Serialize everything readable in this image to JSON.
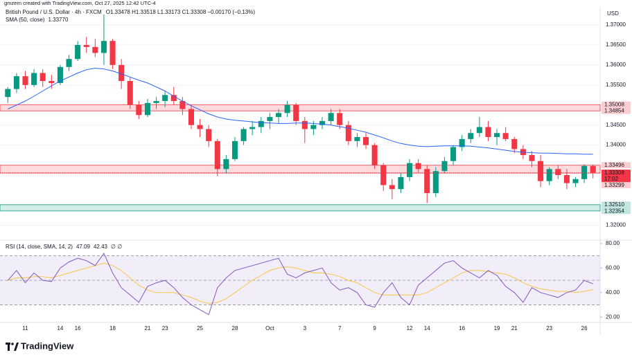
{
  "stamp": "gmzern created with TradingView.com, Oct 27, 2025 12:42 UTC-4",
  "footer": {
    "brand": "TradingView"
  },
  "chart_data": [
    {
      "type": "candlestick",
      "title": "British Pound / U.S. Dollar · 4h · FXCM",
      "ohlc_legend": "O1.33478 H1.33518 L1.33173 C1.33308 −0.00170 (−0.13%)",
      "currency": "USD",
      "categories": [
        null,
        null,
        "11",
        null,
        null,
        null,
        "14",
        null,
        "16",
        null,
        null,
        null,
        "18",
        null,
        null,
        null,
        "21",
        null,
        "23",
        null,
        null,
        null,
        "25",
        null,
        null,
        null,
        "28",
        null,
        null,
        null,
        "Oct",
        null,
        null,
        null,
        "3",
        null,
        null,
        null,
        "7",
        null,
        null,
        null,
        "9",
        null,
        null,
        null,
        "12",
        null,
        "14",
        null,
        null,
        null,
        "16",
        null,
        null,
        null,
        "19",
        null,
        "21",
        null,
        null,
        null,
        "23",
        null,
        null,
        null,
        "26",
        null
      ],
      "open": [
        1.352,
        1.354,
        1.3572,
        1.355,
        1.358,
        1.356,
        1.3555,
        1.3595,
        1.3615,
        1.365,
        1.3645,
        1.363,
        1.366,
        1.36,
        1.356,
        1.35,
        1.3475,
        1.3505,
        1.351,
        1.3525,
        1.351,
        1.349,
        1.345,
        1.344,
        1.341,
        1.334,
        1.3365,
        1.341,
        1.344,
        1.3445,
        1.346,
        1.347,
        1.348,
        1.35,
        1.346,
        1.344,
        1.345,
        1.346,
        1.348,
        1.345,
        1.341,
        1.342,
        1.34,
        1.335,
        1.33,
        1.329,
        1.332,
        1.3355,
        1.334,
        1.328,
        1.3335,
        1.336,
        1.3395,
        1.3415,
        1.343,
        1.3445,
        1.342,
        1.343,
        1.3415,
        1.339,
        1.3375,
        1.336,
        1.331,
        1.334,
        1.3325,
        1.3305,
        1.3315,
        1.33478
      ],
      "high": [
        1.3545,
        1.358,
        1.3585,
        1.359,
        1.359,
        1.3575,
        1.36,
        1.3625,
        1.366,
        1.367,
        1.3665,
        1.3726,
        1.3665,
        1.3615,
        1.357,
        1.351,
        1.3515,
        1.352,
        1.3535,
        1.3545,
        1.352,
        1.35,
        1.3465,
        1.345,
        1.3415,
        1.3375,
        1.342,
        1.3445,
        1.346,
        1.347,
        1.348,
        1.349,
        1.351,
        1.3505,
        1.347,
        1.346,
        1.347,
        1.349,
        1.349,
        1.346,
        1.343,
        1.343,
        1.3405,
        1.3355,
        1.3315,
        1.333,
        1.3365,
        1.3365,
        1.335,
        1.3345,
        1.337,
        1.34,
        1.3425,
        1.344,
        1.347,
        1.346,
        1.344,
        1.3445,
        1.342,
        1.34,
        1.3385,
        1.3375,
        1.3345,
        1.335,
        1.334,
        1.332,
        1.3352,
        1.33518
      ],
      "low": [
        1.3505,
        1.353,
        1.354,
        1.3545,
        1.3545,
        1.354,
        1.355,
        1.3585,
        1.361,
        1.363,
        1.362,
        1.36,
        1.359,
        1.354,
        1.349,
        1.3465,
        1.347,
        1.349,
        1.3495,
        1.35,
        1.3475,
        1.344,
        1.342,
        1.3395,
        1.3322,
        1.333,
        1.336,
        1.34,
        1.3425,
        1.343,
        1.344,
        1.3455,
        1.347,
        1.345,
        1.3405,
        1.3425,
        1.344,
        1.345,
        1.344,
        1.34,
        1.3395,
        1.339,
        1.334,
        1.3285,
        1.3265,
        1.328,
        1.331,
        1.333,
        1.3255,
        1.327,
        1.333,
        1.335,
        1.3385,
        1.3405,
        1.342,
        1.341,
        1.34,
        1.341,
        1.338,
        1.3365,
        1.3345,
        1.3295,
        1.33,
        1.3315,
        1.329,
        1.3295,
        1.3305,
        1.33173
      ],
      "close": [
        1.354,
        1.3572,
        1.355,
        1.358,
        1.356,
        1.3555,
        1.3595,
        1.3615,
        1.365,
        1.3645,
        1.363,
        1.366,
        1.36,
        1.356,
        1.35,
        1.3475,
        1.3505,
        1.351,
        1.3525,
        1.351,
        1.349,
        1.345,
        1.344,
        1.341,
        1.334,
        1.3365,
        1.341,
        1.344,
        1.3445,
        1.346,
        1.347,
        1.348,
        1.35,
        1.346,
        1.344,
        1.345,
        1.346,
        1.348,
        1.345,
        1.341,
        1.342,
        1.34,
        1.335,
        1.33,
        1.329,
        1.332,
        1.3355,
        1.334,
        1.328,
        1.3335,
        1.336,
        1.3395,
        1.3415,
        1.343,
        1.3445,
        1.342,
        1.343,
        1.3415,
        1.339,
        1.3375,
        1.336,
        1.331,
        1.334,
        1.3325,
        1.3305,
        1.3315,
        1.3348,
        1.33308
      ],
      "up_color": "#089981",
      "down_color": "#f23645",
      "countdown": "17:02",
      "sma": {
        "name": "SMA (50, close)",
        "value_label": "1.33770",
        "color": "#2962ff",
        "values": [
          1.349,
          1.35,
          1.351,
          1.3522,
          1.3535,
          1.3548,
          1.356,
          1.357,
          1.358,
          1.3588,
          1.3592,
          1.359,
          1.3585,
          1.3578,
          1.357,
          1.3562,
          1.3555,
          1.3545,
          1.3535,
          1.3522,
          1.351,
          1.3498,
          1.3488,
          1.3478,
          1.347,
          1.3465,
          1.3462,
          1.346,
          1.3458,
          1.3456,
          1.3455,
          1.3454,
          1.3454,
          1.3455,
          1.3455,
          1.3454,
          1.3452,
          1.345,
          1.3446,
          1.3442,
          1.3437,
          1.3432,
          1.3425,
          1.3418,
          1.341,
          1.3404,
          1.34,
          1.3397,
          1.3396,
          1.3397,
          1.3398,
          1.3398,
          1.3398,
          1.3397,
          1.3395,
          1.3393,
          1.339,
          1.3387,
          1.3384,
          1.3382,
          1.3381,
          1.338,
          1.338,
          1.3379,
          1.3378,
          1.3378,
          1.3377,
          1.3377
        ]
      },
      "zones": [
        {
          "high": {
            "value": 1.35008,
            "label": "1.35008"
          },
          "low": {
            "value": 1.34854,
            "label": "1.34854"
          },
          "color": "#f23645"
        },
        {
          "high": {
            "value": 1.33496,
            "label": "1.33496"
          },
          "low": {
            "value": 1.33299,
            "label": "1.33299"
          },
          "color": "#f23645"
        },
        {
          "high": {
            "value": 1.3251,
            "label": "1.32510"
          },
          "low": {
            "value": 1.32354,
            "label": "1.32354"
          },
          "color": "#089981"
        }
      ],
      "ylim": [
        1.3166,
        1.3745
      ],
      "yticks": [
        {
          "value": 1.37,
          "label": "1.37000"
        },
        {
          "value": 1.365,
          "label": "1.36500"
        },
        {
          "value": 1.36,
          "label": "1.36000"
        },
        {
          "value": 1.355,
          "label": "1.35500"
        },
        {
          "value": 1.345,
          "label": "1.34500"
        },
        {
          "value": 1.34,
          "label": "1.34000"
        },
        {
          "value": 1.32,
          "label": "1.32000"
        }
      ],
      "grid": true
    },
    {
      "type": "line",
      "title": "RSI (14, close, SMA, 14, 2)",
      "extra": "∅ ∅",
      "color": "#7e57c2",
      "values": [
        50,
        58,
        48,
        56,
        50,
        49,
        60,
        65,
        68,
        66,
        62,
        72,
        56,
        44,
        38,
        32,
        45,
        48,
        50,
        44,
        36,
        30,
        26,
        22,
        44,
        52,
        58,
        60,
        62,
        64,
        66,
        68,
        55,
        52,
        56,
        58,
        60,
        48,
        42,
        44,
        40,
        30,
        28,
        40,
        48,
        36,
        30,
        46,
        52,
        58,
        64,
        66,
        60,
        56,
        52,
        58,
        54,
        45,
        40,
        32,
        44,
        40,
        38,
        36,
        40,
        42,
        50,
        47.09
      ],
      "sma_color": "#f7c545",
      "sma_values": [
        50,
        52,
        52,
        53,
        53,
        52,
        54,
        56,
        58,
        60,
        62,
        64,
        62,
        58,
        52,
        46,
        42,
        40,
        40,
        40,
        38,
        36,
        33,
        31,
        32,
        35,
        40,
        45,
        50,
        54,
        58,
        60,
        61,
        60,
        58,
        56,
        56,
        55,
        53,
        50,
        48,
        44,
        40,
        38,
        38,
        38,
        38,
        38,
        40,
        44,
        48,
        52,
        56,
        58,
        58,
        57,
        56,
        55,
        52,
        48,
        45,
        43,
        42,
        41,
        41,
        40,
        41,
        42.43
      ],
      "levels": [
        70,
        50,
        30
      ],
      "band_color": "#7e57c2",
      "ylim": [
        15.6,
        82.2
      ],
      "yticks": [
        {
          "value": 80,
          "label": "80.00"
        },
        {
          "value": 60,
          "label": "60.00"
        },
        {
          "value": 40,
          "label": "40.00"
        },
        {
          "value": 20,
          "label": "20.00"
        }
      ]
    }
  ]
}
